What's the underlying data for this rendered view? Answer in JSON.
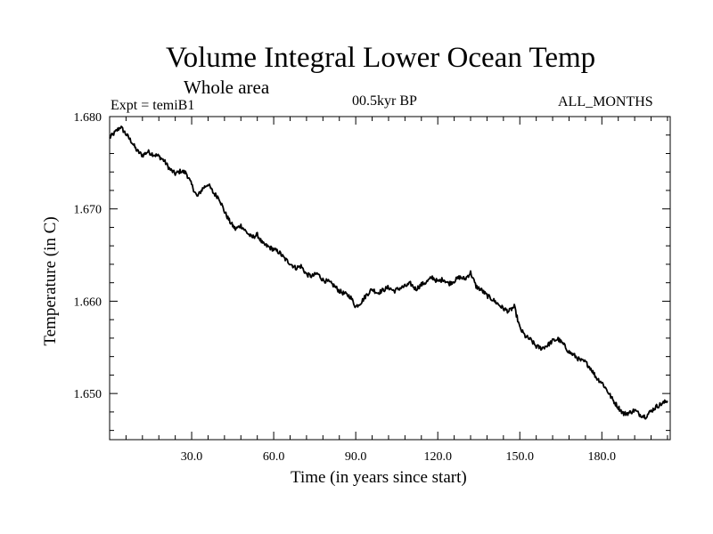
{
  "chart_data": {
    "type": "line",
    "title": "Volume Integral Lower Ocean Temp",
    "subtitle": "Whole area",
    "experiment": "Expt = temiB1",
    "period": "00.5kyr BP",
    "months": "ALL_MONTHS",
    "xlabel": "Time (in years since start)",
    "ylabel": "Temperature (in C)",
    "xlim": [
      0,
      205
    ],
    "ylim": [
      1.645,
      1.68
    ],
    "xticks": [
      30,
      60,
      90,
      120,
      150,
      180
    ],
    "xtick_labels": [
      "30.0",
      "60.0",
      "90.0",
      "120.0",
      "150.0",
      "180.0"
    ],
    "yticks": [
      1.65,
      1.66,
      1.67,
      1.68
    ],
    "ytick_labels": [
      "1.650",
      "1.660",
      "1.670",
      "1.680"
    ],
    "grid": false,
    "series": [
      {
        "name": "temiB1",
        "color": "#000000",
        "x": [
          0,
          2,
          4,
          6,
          8,
          10,
          12,
          14,
          16,
          18,
          20,
          22,
          24,
          26,
          28,
          30,
          32,
          34,
          36,
          38,
          40,
          42,
          44,
          46,
          48,
          50,
          52,
          54,
          56,
          58,
          60,
          62,
          64,
          66,
          68,
          70,
          72,
          74,
          76,
          78,
          80,
          82,
          84,
          86,
          88,
          90,
          92,
          94,
          96,
          98,
          100,
          102,
          104,
          106,
          108,
          110,
          112,
          114,
          116,
          118,
          120,
          122,
          124,
          126,
          128,
          130,
          132,
          134,
          136,
          138,
          140,
          142,
          144,
          146,
          148,
          150,
          152,
          154,
          156,
          158,
          160,
          162,
          164,
          166,
          168,
          170,
          172,
          174,
          176,
          178,
          180,
          182,
          184,
          186,
          188,
          190,
          192,
          194,
          196,
          198,
          200,
          202,
          204
        ],
        "y": [
          1.6777,
          1.6783,
          1.6789,
          1.6781,
          1.6773,
          1.6763,
          1.6758,
          1.6762,
          1.6759,
          1.6757,
          1.6752,
          1.6743,
          1.6738,
          1.6741,
          1.6739,
          1.6726,
          1.6713,
          1.6722,
          1.6727,
          1.6717,
          1.6712,
          1.6697,
          1.6686,
          1.6678,
          1.6682,
          1.6675,
          1.6669,
          1.6672,
          1.6662,
          1.6659,
          1.6656,
          1.6653,
          1.6646,
          1.6641,
          1.6636,
          1.6638,
          1.6629,
          1.6627,
          1.663,
          1.6623,
          1.6621,
          1.6617,
          1.6611,
          1.6608,
          1.6605,
          1.6594,
          1.6599,
          1.6607,
          1.6613,
          1.6609,
          1.6612,
          1.6615,
          1.6611,
          1.6614,
          1.6616,
          1.6619,
          1.6613,
          1.6618,
          1.6621,
          1.6626,
          1.6621,
          1.6624,
          1.6619,
          1.6622,
          1.6626,
          1.6624,
          1.6631,
          1.6616,
          1.6612,
          1.6606,
          1.6602,
          1.6597,
          1.6592,
          1.6589,
          1.6594,
          1.6571,
          1.6562,
          1.6558,
          1.6551,
          1.6549,
          1.6552,
          1.6557,
          1.6559,
          1.6553,
          1.6545,
          1.6541,
          1.6536,
          1.6534,
          1.6527,
          1.6517,
          1.6512,
          1.6503,
          1.6493,
          1.6485,
          1.6478,
          1.6479,
          1.6482,
          1.6477,
          1.6475,
          1.6481,
          1.6486,
          1.6489,
          1.6492
        ]
      }
    ]
  }
}
